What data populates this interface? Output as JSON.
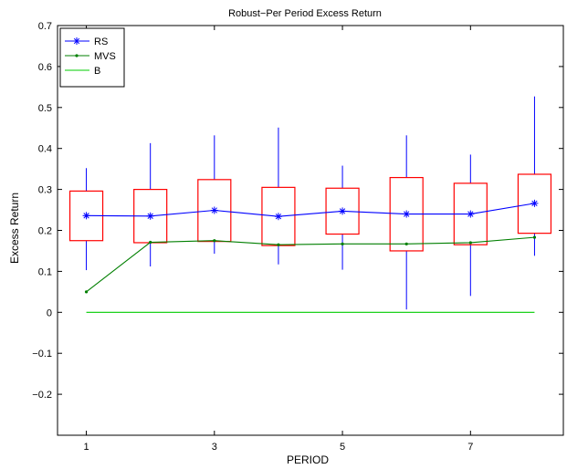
{
  "chart_data": {
    "type": "box",
    "title": "Robust−Per Period Excess Return",
    "xlabel": "PERIOD",
    "ylabel": "Excess Return",
    "xlim": [
      0.55,
      8.45
    ],
    "ylim": [
      -0.3,
      0.7
    ],
    "xticks": [
      1,
      3,
      5,
      7
    ],
    "xtick_labels": [
      "1",
      "3",
      "5",
      "7"
    ],
    "yticks": [
      -0.2,
      -0.1,
      0,
      0.1,
      0.2,
      0.3,
      0.4,
      0.5,
      0.6,
      0.7
    ],
    "ytick_labels": [
      "−0.2",
      "−0.1",
      "0",
      "0.1",
      "0.2",
      "0.3",
      "0.4",
      "0.5",
      "0.6",
      "0.7"
    ],
    "legend_position": "top-left",
    "x": [
      1,
      2,
      3,
      4,
      5,
      6,
      7,
      8
    ],
    "boxes": [
      {
        "period": 1,
        "whisker_low": 0.103,
        "q1": 0.175,
        "q3": 0.296,
        "whisker_high": 0.352
      },
      {
        "period": 2,
        "whisker_low": 0.112,
        "q1": 0.17,
        "q3": 0.3,
        "whisker_high": 0.413
      },
      {
        "period": 3,
        "whisker_low": 0.143,
        "q1": 0.173,
        "q3": 0.324,
        "whisker_high": 0.432
      },
      {
        "period": 4,
        "whisker_low": 0.117,
        "q1": 0.163,
        "q3": 0.305,
        "whisker_high": 0.451
      },
      {
        "period": 5,
        "whisker_low": 0.104,
        "q1": 0.191,
        "q3": 0.303,
        "whisker_high": 0.358
      },
      {
        "period": 6,
        "whisker_low": 0.007,
        "q1": 0.15,
        "q3": 0.329,
        "whisker_high": 0.432
      },
      {
        "period": 7,
        "whisker_low": 0.04,
        "q1": 0.165,
        "q3": 0.315,
        "whisker_high": 0.385
      },
      {
        "period": 8,
        "whisker_low": 0.138,
        "q1": 0.193,
        "q3": 0.337,
        "whisker_high": 0.527
      }
    ],
    "series": [
      {
        "name": "RS",
        "color": "#0000ff",
        "marker": "asterisk",
        "values": [
          0.236,
          0.235,
          0.249,
          0.234,
          0.247,
          0.24,
          0.24,
          0.266
        ]
      },
      {
        "name": "MVS",
        "color": "#007f00",
        "marker": "dot",
        "values": [
          0.05,
          0.171,
          0.175,
          0.165,
          0.167,
          0.167,
          0.17,
          0.183
        ]
      },
      {
        "name": "B",
        "color": "#00cc00",
        "marker": "none",
        "values": [
          0,
          0,
          0,
          0,
          0,
          0,
          0,
          0
        ]
      }
    ],
    "box_color": "#ff0000",
    "whisker_color": "#0000ff"
  }
}
